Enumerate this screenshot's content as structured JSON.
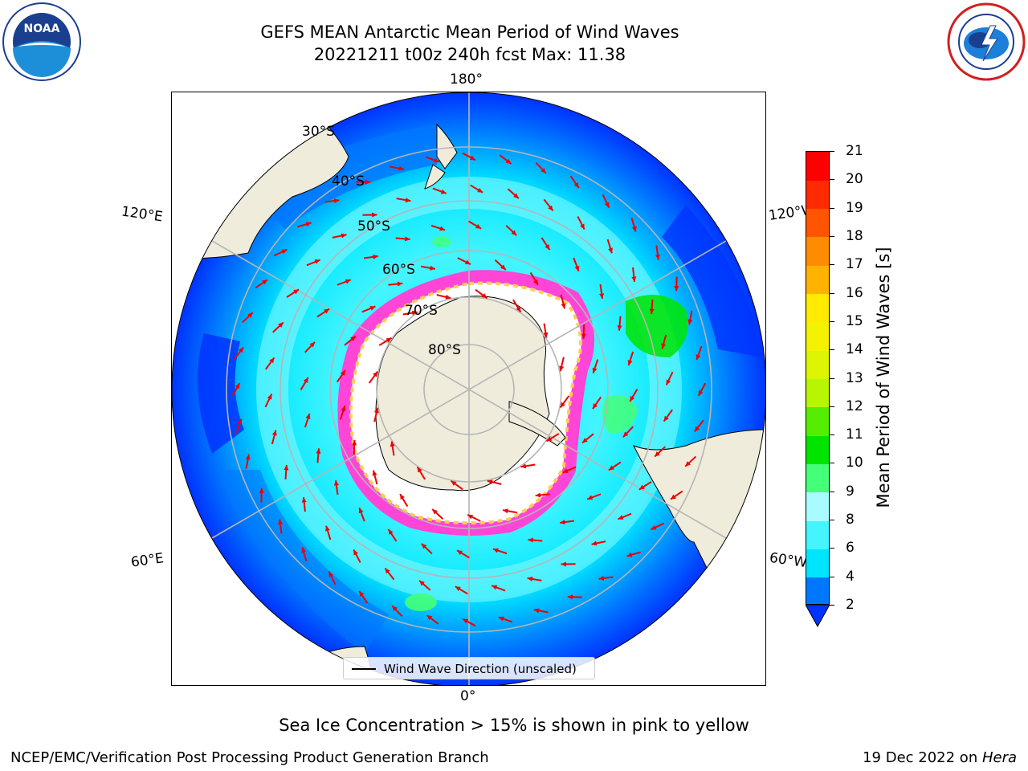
{
  "title": {
    "line1": "GEFS MEAN Antarctic Mean Period of Wind Waves",
    "line2": "20221211 t00z 240h fcst   Max: 11.38"
  },
  "logos": {
    "left": "noaa-logo",
    "left_text": "NOAA",
    "right": "nws-logo"
  },
  "map": {
    "projection": "south-polar-stereographic",
    "lon_labels": {
      "top": "180°",
      "bottom": "0°",
      "upper_left": "120°E",
      "upper_right": "120°W",
      "lower_left": "60°E",
      "lower_right": "60°W"
    },
    "lat_labels": [
      "30°S",
      "40°S",
      "50°S",
      "60°S",
      "70°S",
      "80°S"
    ],
    "colors": {
      "land": "#efecdc",
      "ice": "#ffffff",
      "ice_edge_pink": "#ff44d8",
      "ice_edge_yellow": "#ffcc55",
      "arrow": "#ee0000",
      "grid": "#b5b5b5"
    }
  },
  "colorbar": {
    "label": "Mean Period of Wind Waves [s]",
    "ticks": [
      "2",
      "4",
      "6",
      "8",
      "9",
      "10",
      "11",
      "12",
      "13",
      "14",
      "15",
      "16",
      "17",
      "18",
      "19",
      "20",
      "21"
    ],
    "colors": [
      "#0077ff",
      "#00e5ff",
      "#44f5ff",
      "#a8fcff",
      "#44ff77",
      "#00e400",
      "#55ee00",
      "#b8f500",
      "#ddf500",
      "#f3f300",
      "#ffea00",
      "#ffb300",
      "#ff8c00",
      "#ff5500",
      "#ff2a00",
      "#ff0000"
    ],
    "under_color": "#0033ff"
  },
  "legend": {
    "label": "Wind Wave Direction (unscaled)"
  },
  "subnote": "Sea Ice Concentration > 15% is shown in pink to yellow",
  "footer": {
    "left": "NCEP/EMC/Verification Post Processing Product Generation Branch",
    "right_prefix": "19 Dec 2022 on ",
    "right_host": "Hera"
  }
}
